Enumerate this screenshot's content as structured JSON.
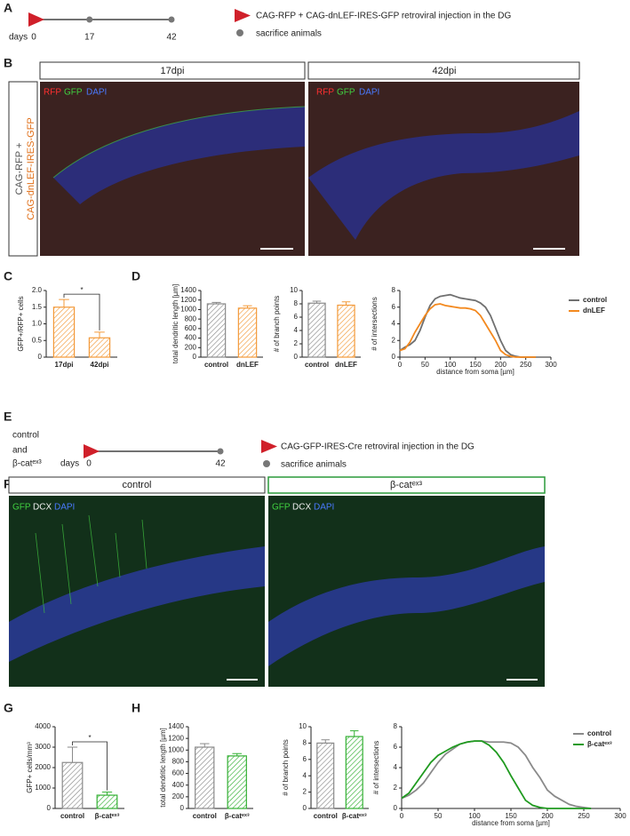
{
  "panel_labels": [
    "A",
    "B",
    "C",
    "D",
    "E",
    "F",
    "G",
    "H"
  ],
  "timeline_a": {
    "axis_label": "days",
    "ticks": [
      0,
      17,
      42
    ],
    "legend": [
      "CAG-RFP + CAG-dnLEF-IRES-GFP retroviral injection in the DG",
      "sacrifice animals"
    ]
  },
  "panel_b": {
    "headers": [
      "17dpi",
      "42dpi"
    ],
    "construct": [
      "CAG-RFP +",
      "CAG-dnLEF-IRES-GFP"
    ],
    "channels": [
      "RFP",
      "GFP",
      "DAPI"
    ]
  },
  "timeline_e": {
    "groups": [
      "control",
      "and",
      "β-catᵉˣ³"
    ],
    "axis_label": "days",
    "ticks": [
      0,
      42
    ],
    "legend": [
      "CAG-GFP-IRES-Cre retroviral injection in the DG",
      "sacrifice animals"
    ]
  },
  "panel_f": {
    "headers": [
      "control",
      "β-catᵉˣ³"
    ],
    "channels": [
      "GFP",
      "DCX",
      "DAPI"
    ]
  },
  "chart_data": [
    {
      "type": "bar",
      "ylabel": "GFP+/RFP+ cells",
      "categories": [
        "17dpi",
        "42dpi"
      ],
      "values": [
        1.5,
        0.58
      ],
      "errors": [
        0.23,
        0.17
      ],
      "colors": [
        "#f39a3a",
        "#f39a3a"
      ],
      "ylim": [
        0,
        2
      ],
      "yticks": [
        0,
        0.5,
        {
          "value": 1,
          "label": "1.0"
        },
        1.5,
        {
          "value": 2,
          "label": "2.0"
        }
      ],
      "significance": "*"
    },
    {
      "type": "bar",
      "ylabel": "total dendritic length [µm]",
      "categories": [
        "control",
        "dnLEF"
      ],
      "values": [
        1120,
        1030
      ],
      "errors": [
        30,
        50
      ],
      "colors": [
        "#8a8a8a",
        "#f39a3a"
      ],
      "ylim": [
        0,
        1400
      ],
      "yticks": [
        0,
        200,
        400,
        600,
        800,
        1000,
        1200,
        1400
      ]
    },
    {
      "type": "bar",
      "ylabel": "# of branch points",
      "categories": [
        "control",
        "dnLEF"
      ],
      "values": [
        8.1,
        7.8
      ],
      "errors": [
        0.3,
        0.5
      ],
      "colors": [
        "#8a8a8a",
        "#f39a3a"
      ],
      "ylim": [
        0,
        10
      ],
      "yticks": [
        0,
        2,
        4,
        6,
        8,
        10
      ]
    },
    {
      "type": "line",
      "xlabel": "distance from soma [µm]",
      "ylabel": "# of intersections",
      "xlim": [
        0,
        300
      ],
      "xticks": [
        0,
        50,
        100,
        150,
        200,
        250,
        300
      ],
      "ylim": [
        0,
        8
      ],
      "yticks": [
        0,
        2,
        4,
        6,
        8
      ],
      "x": [
        0,
        10,
        20,
        30,
        40,
        50,
        60,
        70,
        80,
        90,
        100,
        110,
        120,
        130,
        140,
        150,
        160,
        170,
        180,
        190,
        200,
        210,
        220,
        230,
        240,
        250,
        260,
        270
      ],
      "series": [
        {
          "name": "control",
          "color": "#707070",
          "values": [
            0.8,
            1.2,
            1.5,
            2.0,
            3.2,
            4.8,
            6.2,
            7.0,
            7.3,
            7.4,
            7.5,
            7.3,
            7.1,
            7.0,
            6.9,
            6.8,
            6.5,
            6.0,
            5.0,
            3.5,
            2.0,
            0.8,
            0.3,
            0.1,
            0,
            0,
            0,
            0
          ]
        },
        {
          "name": "dnLEF",
          "color": "#f3891f",
          "values": [
            0.8,
            1.0,
            1.8,
            3.0,
            4.0,
            5.0,
            5.8,
            6.3,
            6.4,
            6.2,
            6.1,
            6.0,
            5.9,
            5.9,
            5.8,
            5.6,
            5.0,
            4.0,
            3.0,
            2.0,
            0.8,
            0.3,
            0.1,
            0,
            0,
            0,
            0,
            0
          ]
        }
      ]
    },
    {
      "type": "bar",
      "ylabel": "GFP+ cells/mm³",
      "categories": [
        "control",
        "β-catᵉˣ³"
      ],
      "values": [
        2250,
        650
      ],
      "errors": [
        750,
        150
      ],
      "colors": [
        "#8a8a8a",
        "#33b033"
      ],
      "ylim": [
        0,
        4000
      ],
      "yticks": [
        0,
        1000,
        2000,
        3000,
        4000
      ],
      "significance": "*"
    },
    {
      "type": "bar",
      "ylabel": "total dendritic length [µm]",
      "categories": [
        "control",
        "β-catᵉˣ³"
      ],
      "values": [
        1050,
        900
      ],
      "errors": [
        60,
        40
      ],
      "colors": [
        "#8a8a8a",
        "#33b033"
      ],
      "ylim": [
        0,
        1400
      ],
      "yticks": [
        0,
        200,
        400,
        600,
        800,
        1000,
        1200,
        1400
      ]
    },
    {
      "type": "bar",
      "ylabel": "# of branch points",
      "categories": [
        "control",
        "β-catᵉˣ³"
      ],
      "values": [
        8.0,
        8.8
      ],
      "errors": [
        0.4,
        0.7
      ],
      "colors": [
        "#8a8a8a",
        "#33b033"
      ],
      "ylim": [
        0,
        10
      ],
      "yticks": [
        0,
        2,
        4,
        6,
        8,
        10
      ]
    },
    {
      "type": "line",
      "xlabel": "distance from soma [µm]",
      "ylabel": "# of intersections",
      "xlim": [
        0,
        300
      ],
      "xticks": [
        0,
        50,
        100,
        150,
        200,
        250,
        300
      ],
      "ylim": [
        0,
        8
      ],
      "yticks": [
        0,
        2,
        4,
        6,
        8
      ],
      "x": [
        0,
        10,
        20,
        30,
        40,
        50,
        60,
        70,
        80,
        90,
        100,
        110,
        120,
        130,
        140,
        150,
        160,
        170,
        180,
        190,
        200,
        210,
        220,
        230,
        240,
        250,
        260
      ],
      "series": [
        {
          "name": "control",
          "color": "#8a8a8a",
          "values": [
            1.0,
            1.3,
            1.8,
            2.5,
            3.5,
            4.5,
            5.3,
            5.8,
            6.3,
            6.5,
            6.6,
            6.6,
            6.5,
            6.5,
            6.5,
            6.4,
            6.0,
            5.2,
            4.0,
            3.0,
            1.8,
            1.2,
            0.8,
            0.4,
            0.2,
            0.1,
            0
          ]
        },
        {
          "name": "β-catᵉˣ³",
          "color": "#1f9a1f",
          "values": [
            1.0,
            1.5,
            2.5,
            3.5,
            4.5,
            5.2,
            5.6,
            6.0,
            6.3,
            6.5,
            6.6,
            6.6,
            6.2,
            5.5,
            4.5,
            3.2,
            2.0,
            0.8,
            0.3,
            0.1,
            0,
            0,
            0,
            0,
            0,
            0,
            0
          ]
        }
      ]
    }
  ]
}
